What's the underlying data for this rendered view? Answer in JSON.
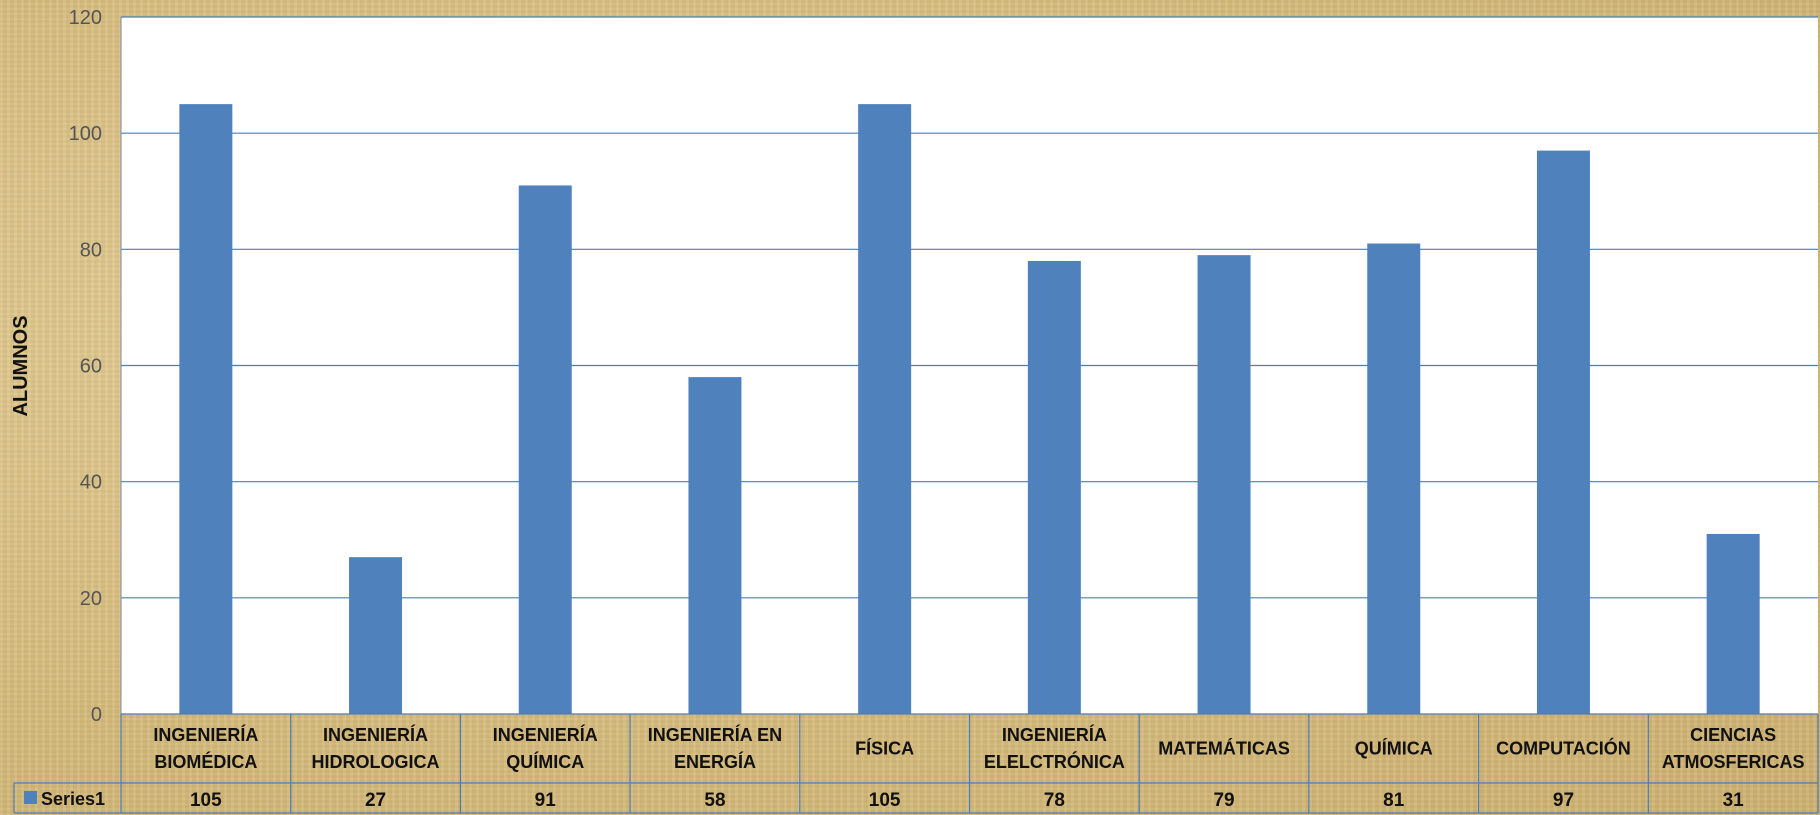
{
  "chart_data": {
    "type": "bar",
    "ylabel": "ALUMNOS",
    "ylim": [
      0,
      120
    ],
    "yticks": [
      0,
      20,
      40,
      60,
      80,
      100,
      120
    ],
    "categories": [
      [
        "INGENIERÍA",
        "BIOMÉDICA"
      ],
      [
        "INGENIERÍA",
        "HIDROLOGICA"
      ],
      [
        "INGENIERÍA",
        "QUÍMICA"
      ],
      [
        "INGENIERÍA EN",
        "ENERGÍA"
      ],
      [
        "FÍSICA"
      ],
      [
        "INGENIERÍA",
        "ELELCTRÓNICA"
      ],
      [
        "MATEMÁTICAS"
      ],
      [
        "QUÍMICA"
      ],
      [
        "COMPUTACIÓN"
      ],
      [
        "CIENCIAS",
        "ATMOSFERICAS"
      ]
    ],
    "series": [
      {
        "name": "Series1",
        "color": "#4f81bd",
        "values": [
          105,
          27,
          91,
          58,
          105,
          78,
          79,
          81,
          97,
          31
        ]
      }
    ],
    "grid": true,
    "legend": "data-table-left"
  }
}
